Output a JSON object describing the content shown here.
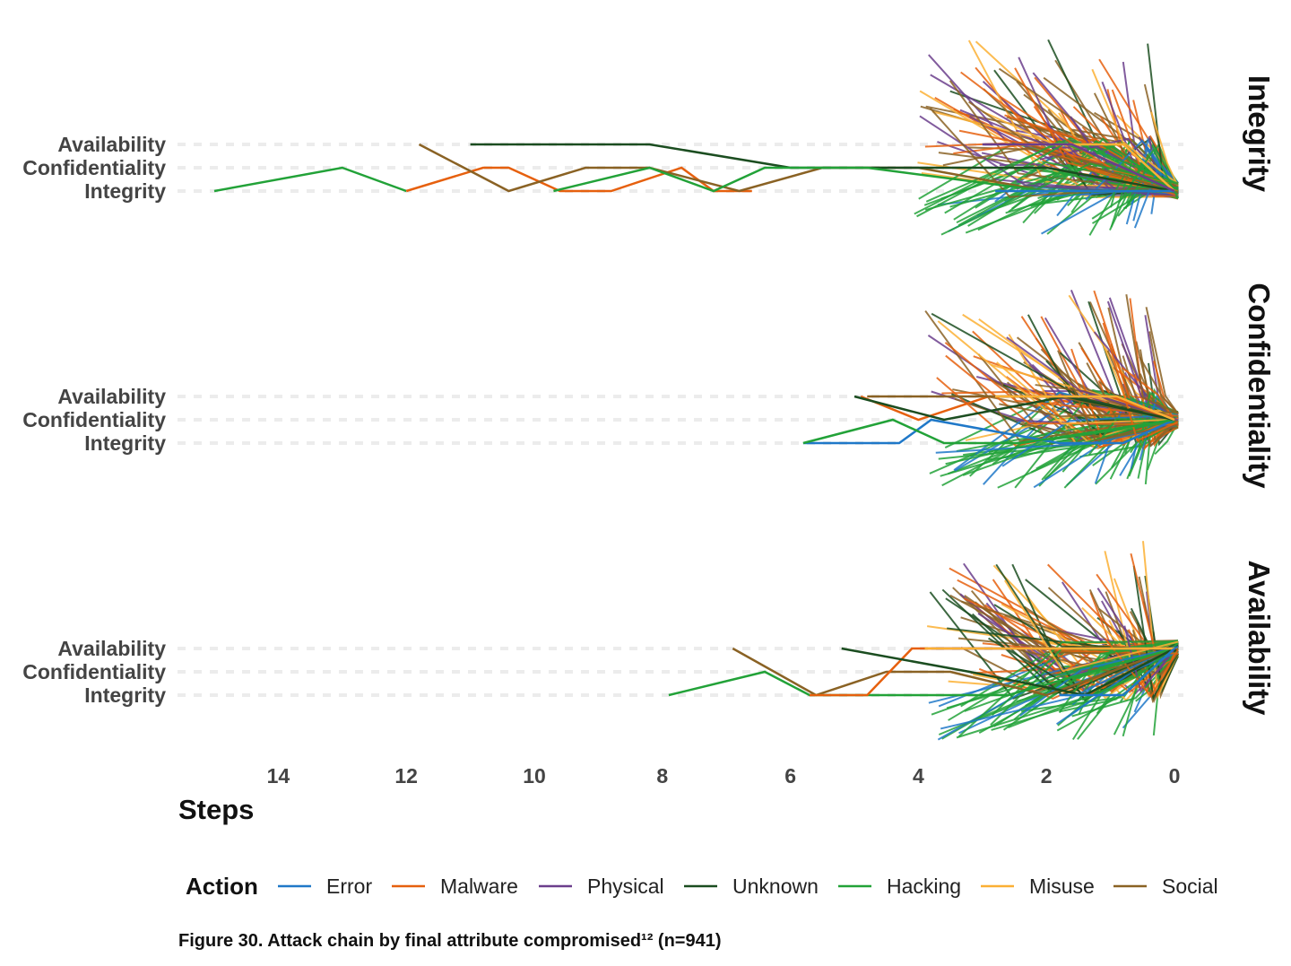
{
  "chart_data": {
    "type": "line",
    "xlabel": "Steps",
    "x_reversed": true,
    "xlim": [
      15.5,
      -0.3
    ],
    "x_ticks": [
      14,
      12,
      10,
      8,
      6,
      4,
      2,
      0
    ],
    "y_categories": [
      "Availability",
      "Confidentiality",
      "Integrity"
    ],
    "grid": "horizontal dashed",
    "legend": {
      "title": "Action",
      "placement": "bottom",
      "entries": [
        {
          "name": "Error",
          "color": "#1f78c8"
        },
        {
          "name": "Malware",
          "color": "#e6600e"
        },
        {
          "name": "Physical",
          "color": "#6b3e8c"
        },
        {
          "name": "Unknown",
          "color": "#1b4d20"
        },
        {
          "name": "Hacking",
          "color": "#22a238"
        },
        {
          "name": "Misuse",
          "color": "#fbb034"
        },
        {
          "name": "Social",
          "color": "#8a6224"
        }
      ]
    },
    "panels": [
      {
        "strip": "Integrity",
        "final_attribute": "Integrity",
        "series": [
          {
            "action": "Hacking",
            "points": [
              [
                15,
                "Integrity"
              ],
              [
                13,
                "Confidentiality"
              ],
              [
                12,
                "Integrity"
              ]
            ]
          },
          {
            "action": "Malware",
            "points": [
              [
                12,
                "Integrity"
              ],
              [
                10.8,
                "Confidentiality"
              ],
              [
                10.4,
                "Confidentiality"
              ],
              [
                9.6,
                "Integrity"
              ],
              [
                8.8,
                "Integrity"
              ],
              [
                7.7,
                "Confidentiality"
              ],
              [
                7.2,
                "Integrity"
              ],
              [
                6.6,
                "Integrity"
              ]
            ]
          },
          {
            "action": "Social",
            "points": [
              [
                11.8,
                "Availability"
              ],
              [
                10.4,
                "Integrity"
              ],
              [
                9.2,
                "Confidentiality"
              ],
              [
                8.2,
                "Confidentiality"
              ],
              [
                6.8,
                "Integrity"
              ],
              [
                5.5,
                "Confidentiality"
              ],
              [
                4,
                "Confidentiality"
              ],
              [
                2,
                "Integrity"
              ],
              [
                0,
                "Integrity"
              ]
            ]
          },
          {
            "action": "Unknown",
            "points": [
              [
                11,
                "Availability"
              ],
              [
                9.3,
                "Availability"
              ],
              [
                8.2,
                "Availability"
              ],
              [
                6,
                "Confidentiality"
              ],
              [
                4.4,
                "Confidentiality"
              ],
              [
                2,
                "Confidentiality"
              ],
              [
                0,
                "Integrity"
              ]
            ]
          },
          {
            "action": "Hacking",
            "points": [
              [
                9.7,
                "Integrity"
              ],
              [
                8.2,
                "Confidentiality"
              ],
              [
                7.2,
                "Integrity"
              ],
              [
                6.4,
                "Confidentiality"
              ],
              [
                4.8,
                "Confidentiality"
              ],
              [
                2,
                "Integrity"
              ],
              [
                0,
                "Integrity"
              ]
            ]
          },
          {
            "action": "Error",
            "points": [
              [
                2.8,
                "Integrity"
              ],
              [
                1.7,
                "Integrity"
              ],
              [
                0,
                "Integrity"
              ]
            ]
          },
          {
            "action": "Misuse",
            "points": [
              [
                2.5,
                "Availability"
              ],
              [
                1.5,
                "Availability"
              ],
              [
                0.8,
                "Availability"
              ],
              [
                0,
                "Integrity"
              ]
            ]
          },
          {
            "action": "Physical",
            "points": [
              [
                3,
                "Availability"
              ],
              [
                1.6,
                "Availability"
              ],
              [
                0,
                "Integrity"
              ]
            ]
          }
        ]
      },
      {
        "strip": "Confidentiality",
        "final_attribute": "Confidentiality",
        "series": [
          {
            "action": "Error",
            "points": [
              [
                5.8,
                "Integrity"
              ],
              [
                4.3,
                "Integrity"
              ],
              [
                3.8,
                "Confidentiality"
              ],
              [
                1.8,
                "Integrity"
              ],
              [
                0.8,
                "Integrity"
              ],
              [
                0,
                "Confidentiality"
              ]
            ]
          },
          {
            "action": "Hacking",
            "points": [
              [
                5.8,
                "Integrity"
              ],
              [
                4.4,
                "Confidentiality"
              ],
              [
                3.6,
                "Integrity"
              ],
              [
                2.4,
                "Integrity"
              ],
              [
                0,
                "Confidentiality"
              ]
            ]
          },
          {
            "action": "Malware",
            "points": [
              [
                4.9,
                "Availability"
              ],
              [
                4,
                "Confidentiality"
              ],
              [
                2.9,
                "Availability"
              ],
              [
                1,
                "Availability"
              ],
              [
                0,
                "Confidentiality"
              ]
            ]
          },
          {
            "action": "Social",
            "points": [
              [
                4.8,
                "Availability"
              ],
              [
                3.8,
                "Availability"
              ],
              [
                2.8,
                "Availability"
              ],
              [
                1.8,
                "Availability"
              ],
              [
                0,
                "Confidentiality"
              ]
            ]
          },
          {
            "action": "Unknown",
            "points": [
              [
                5,
                "Availability"
              ],
              [
                3.6,
                "Confidentiality"
              ],
              [
                1.7,
                "Availability"
              ],
              [
                0,
                "Confidentiality"
              ]
            ]
          },
          {
            "action": "Physical",
            "points": [
              [
                2,
                "Availability"
              ],
              [
                0.9,
                "Availability"
              ],
              [
                0,
                "Confidentiality"
              ]
            ]
          },
          {
            "action": "Misuse",
            "points": [
              [
                2.8,
                "Availability"
              ],
              [
                0.9,
                "Availability"
              ],
              [
                0,
                "Confidentiality"
              ]
            ]
          }
        ]
      },
      {
        "strip": "Availability",
        "final_attribute": "Availability",
        "series": [
          {
            "action": "Social",
            "points": [
              [
                6.9,
                "Availability"
              ],
              [
                5.6,
                "Integrity"
              ],
              [
                4.5,
                "Confidentiality"
              ],
              [
                3.5,
                "Confidentiality"
              ],
              [
                2,
                "Integrity"
              ],
              [
                0,
                "Availability"
              ]
            ]
          },
          {
            "action": "Hacking",
            "points": [
              [
                7.9,
                "Integrity"
              ],
              [
                6.4,
                "Confidentiality"
              ],
              [
                5.7,
                "Integrity"
              ],
              [
                4.4,
                "Integrity"
              ],
              [
                2.6,
                "Integrity"
              ],
              [
                0,
                "Availability"
              ]
            ]
          },
          {
            "action": "Malware",
            "points": [
              [
                5.7,
                "Integrity"
              ],
              [
                4.8,
                "Integrity"
              ],
              [
                4.1,
                "Availability"
              ],
              [
                3,
                "Availability"
              ],
              [
                1.4,
                "Availability"
              ],
              [
                0,
                "Availability"
              ]
            ]
          },
          {
            "action": "Unknown",
            "points": [
              [
                5.2,
                "Availability"
              ],
              [
                3.2,
                "Confidentiality"
              ],
              [
                1.4,
                "Integrity"
              ],
              [
                0,
                "Availability"
              ]
            ]
          },
          {
            "action": "Physical",
            "points": [
              [
                3.8,
                "Availability"
              ],
              [
                2.2,
                "Availability"
              ],
              [
                1,
                "Availability"
              ],
              [
                0,
                "Availability"
              ]
            ]
          },
          {
            "action": "Misuse",
            "points": [
              [
                3.9,
                "Availability"
              ],
              [
                2.6,
                "Availability"
              ],
              [
                0.9,
                "Availability"
              ],
              [
                0,
                "Availability"
              ]
            ]
          },
          {
            "action": "Error",
            "points": [
              [
                1.8,
                "Integrity"
              ],
              [
                0.8,
                "Integrity"
              ],
              [
                0,
                "Availability"
              ]
            ]
          }
        ]
      }
    ]
  },
  "caption": "Figure 30. Attack chain by final attribute compromised¹² (n=941)"
}
